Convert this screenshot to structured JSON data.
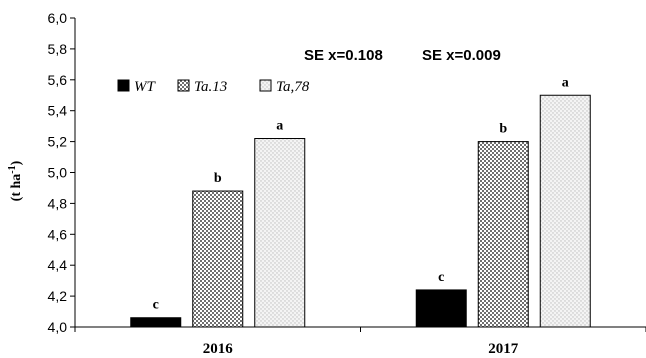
{
  "chart_data": {
    "type": "bar",
    "categories": [
      "2016",
      "2017"
    ],
    "series": [
      {
        "name": "WT",
        "values": [
          4.06,
          4.24
        ],
        "letters": [
          "c",
          "c"
        ],
        "pattern": "solid"
      },
      {
        "name": "Ta.13",
        "values": [
          4.88,
          5.2
        ],
        "letters": [
          "b",
          "b"
        ],
        "pattern": "checker"
      },
      {
        "name": "Ta,78",
        "values": [
          5.22,
          5.5
        ],
        "letters": [
          "a",
          "a"
        ],
        "pattern": "dots"
      }
    ],
    "ylabel_main": "(t ha",
    "ylabel_sup": "-1",
    "ylabel_close": ")",
    "ylim": [
      4.0,
      6.0
    ],
    "yticks": [
      "4,0",
      "4,2",
      "4,4",
      "4,6",
      "4,8",
      "5,0",
      "5,2",
      "5,4",
      "5,6",
      "5,8",
      "6,0"
    ],
    "annotations": [
      "SE x=0.108",
      "SE x=0.009"
    ],
    "legend_position": "top-left",
    "grid": false,
    "colors": {
      "wt": "#000000",
      "ta13": "#9a9a9a",
      "ta78": "#e6e6e6",
      "axis": "#000000"
    }
  }
}
